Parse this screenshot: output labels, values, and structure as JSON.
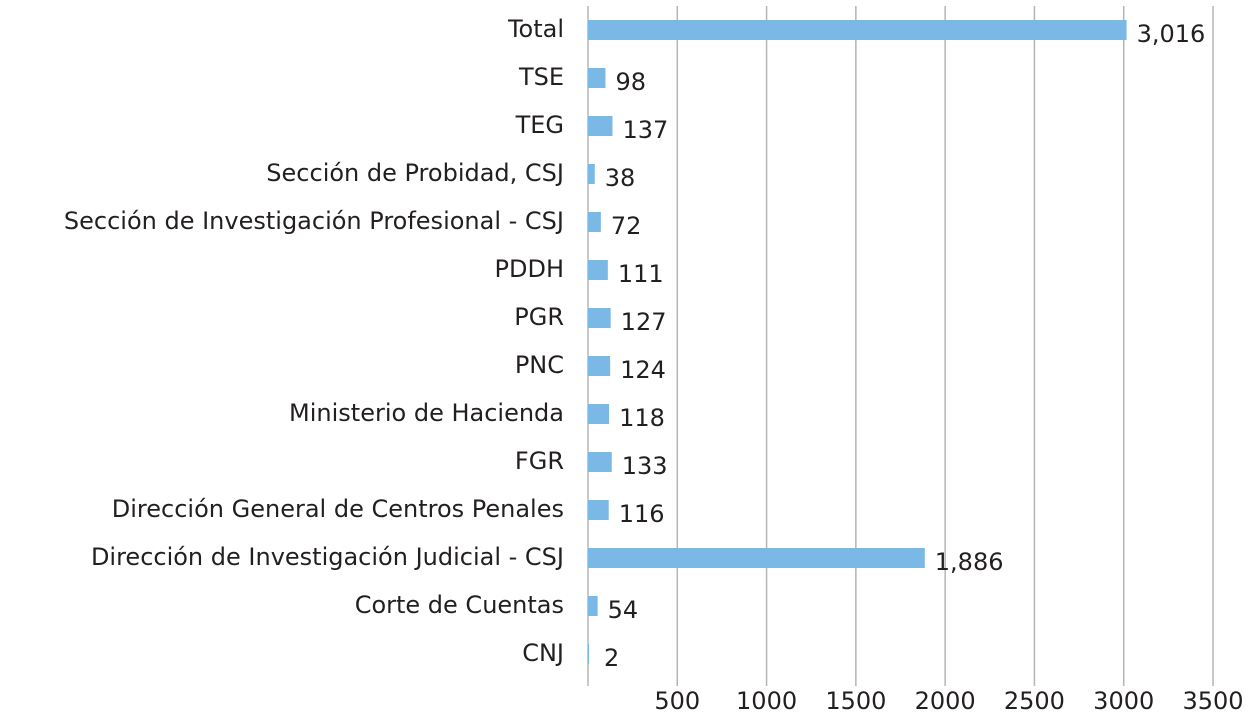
{
  "chart_data": {
    "type": "bar",
    "orientation": "horizontal",
    "categories": [
      "Total",
      "TSE",
      "TEG",
      "Sección de Probidad, CSJ",
      "Sección de Investigación Profesional - CSJ",
      "PDDH",
      "PGR",
      "PNC",
      "Ministerio de Hacienda",
      "FGR",
      "Dirección General de Centros Penales",
      "Dirección de Investigación Judicial - CSJ",
      "Corte de Cuentas",
      "CNJ"
    ],
    "values": [
      3016,
      98,
      137,
      38,
      72,
      111,
      127,
      124,
      118,
      133,
      116,
      1886,
      54,
      2
    ],
    "value_labels": [
      "3,016",
      "98",
      "137",
      "38",
      "72",
      "111",
      "127",
      "124",
      "118",
      "133",
      "116",
      "1,886",
      "54",
      "2"
    ],
    "color": "#7ab8e6",
    "xlim": [
      0,
      3500
    ],
    "xticks": [
      500,
      1000,
      1500,
      2000,
      2500,
      3000,
      3500
    ],
    "grid": true
  }
}
